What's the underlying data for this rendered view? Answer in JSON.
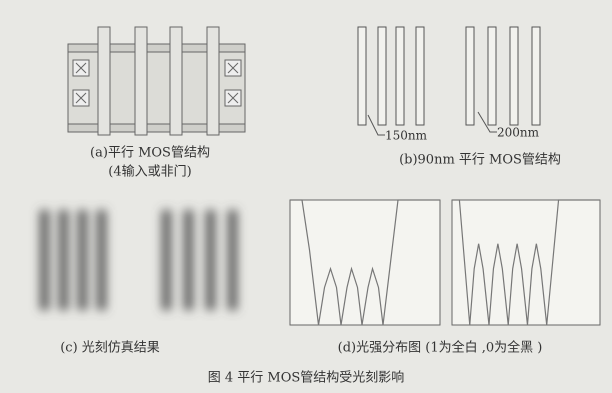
{
  "panels": [
    {
      "caption": "(a)平行 MOS管结构",
      "subcaption": "(4输入或非门)"
    },
    {
      "caption": "(b)90nm 平行 MOS管结构",
      "labels": [
        "150nm",
        "200nm"
      ]
    },
    {
      "caption": "(c) 光刻仿真结果"
    },
    {
      "caption": "(d)光强分布图 (1为全白 ,0为全黑 )"
    }
  ],
  "figure_caption": "图 4  平行 MOS管结构受光刻影响",
  "chart_data": [
    {
      "type": "line",
      "color": "#777777",
      "xlim": [
        0,
        100
      ],
      "ylim": [
        0,
        1
      ],
      "x": [
        0,
        8,
        13,
        19,
        23,
        27,
        31,
        34,
        38,
        41,
        45,
        48,
        52,
        55,
        59,
        62,
        67,
        72,
        100
      ],
      "values": [
        1,
        1,
        0.6,
        0,
        0.3,
        0.45,
        0.3,
        0,
        0.3,
        0.45,
        0.3,
        0,
        0.3,
        0.45,
        0.3,
        0,
        0.5,
        1,
        1
      ]
    },
    {
      "type": "line",
      "color": "#777777",
      "xlim": [
        0,
        100
      ],
      "ylim": [
        0,
        1
      ],
      "x": [
        0,
        5,
        12,
        15,
        18,
        21,
        25,
        28,
        31,
        34,
        38,
        41,
        44,
        47,
        51,
        54,
        57,
        60,
        64,
        68,
        72,
        100
      ],
      "values": [
        1,
        1,
        0,
        0.45,
        0.65,
        0.45,
        0,
        0.45,
        0.65,
        0.45,
        0,
        0.45,
        0.65,
        0.45,
        0,
        0.45,
        0.65,
        0.45,
        0,
        0.5,
        1,
        1
      ]
    }
  ]
}
